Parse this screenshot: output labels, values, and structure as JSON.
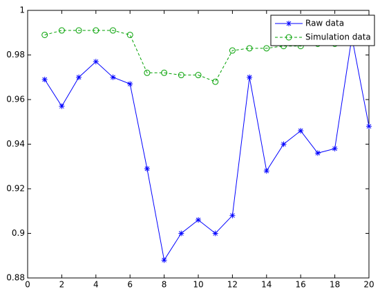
{
  "chart_data": {
    "type": "line",
    "x": [
      1,
      2,
      3,
      4,
      5,
      6,
      7,
      8,
      9,
      10,
      11,
      12,
      13,
      14,
      15,
      16,
      17,
      18,
      19,
      20
    ],
    "series": [
      {
        "name": "Raw data",
        "color": "#0000ff",
        "marker": "star",
        "dash": "solid",
        "values": [
          0.969,
          0.957,
          0.97,
          0.977,
          0.97,
          0.967,
          0.929,
          0.888,
          0.9,
          0.906,
          0.9,
          0.908,
          0.97,
          0.928,
          0.94,
          0.946,
          0.936,
          0.938,
          0.988,
          0.948
        ]
      },
      {
        "name": "Simulation data",
        "color": "#00a000",
        "marker": "circle",
        "dash": "dashed",
        "values": [
          0.989,
          0.991,
          0.991,
          0.991,
          0.991,
          0.989,
          0.972,
          0.972,
          0.971,
          0.971,
          0.968,
          0.982,
          0.983,
          0.983,
          0.984,
          0.984,
          0.985,
          0.985,
          0.986,
          0.987
        ]
      }
    ],
    "xlim": [
      0,
      20
    ],
    "xticks": [
      0,
      2,
      4,
      6,
      8,
      10,
      12,
      14,
      16,
      18,
      20
    ],
    "ylim": [
      0.88,
      1
    ],
    "yticks": [
      0.88,
      0.9,
      0.92,
      0.94,
      0.96,
      0.98,
      1
    ],
    "legend": "top-right",
    "grid": false
  }
}
